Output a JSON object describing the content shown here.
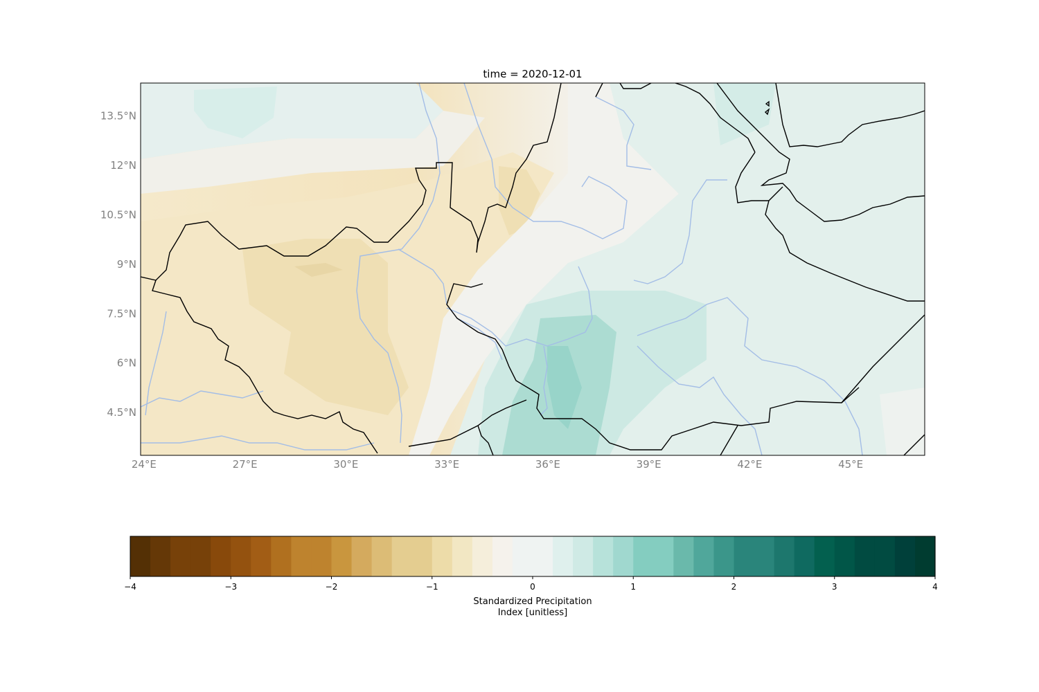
{
  "title": "time = 2020-12-01",
  "map": {
    "lon_range": [
      23.9,
      47.2
    ],
    "lat_range": [
      3.2,
      14.5
    ],
    "lat_ticks": [
      {
        "value": 13.5,
        "label": "13.5°N"
      },
      {
        "value": 12,
        "label": "12°N"
      },
      {
        "value": 10.5,
        "label": "10.5°N"
      },
      {
        "value": 9,
        "label": "9°N"
      },
      {
        "value": 7.5,
        "label": "7.5°N"
      },
      {
        "value": 6,
        "label": "6°N"
      },
      {
        "value": 4.5,
        "label": "4.5°N"
      }
    ],
    "lon_ticks": [
      {
        "value": 24,
        "label": "24°E"
      },
      {
        "value": 27,
        "label": "27°E"
      },
      {
        "value": 30,
        "label": "30°E"
      },
      {
        "value": 33,
        "label": "33°E"
      },
      {
        "value": 36,
        "label": "36°E"
      },
      {
        "value": 39,
        "label": "39°E"
      },
      {
        "value": 42,
        "label": "42°E"
      },
      {
        "value": 45,
        "label": "45°E"
      }
    ],
    "field_description_values": {
      "west_dry_region_min": -0.9,
      "east_wet_region_max": 1.1
    },
    "colors": {
      "border": "#000000",
      "river": "#a3bde6"
    }
  },
  "chart_data": {
    "type": "heatmap",
    "title": "time = 2020-12-01",
    "colormap": "BrBG",
    "vmin": -4,
    "vmax": 4,
    "levels_step": 0.2,
    "colorbar_ticks": [
      -4,
      -3,
      -2,
      -1,
      0,
      1,
      2,
      3,
      4
    ],
    "colorbar_tick_labels": [
      "−4",
      "−3",
      "−2",
      "−1",
      "0",
      "1",
      "2",
      "3",
      "4"
    ],
    "colorbar_label": [
      "Standardized Precipitation",
      "Index [unitless]"
    ]
  },
  "colorbar": {
    "colors": [
      "#543005",
      "#653807",
      "#774109",
      "#88490b",
      "#94520f",
      "#a25d15",
      "#b0701f",
      "#be832e",
      "#c9963e",
      "#d4aa5e",
      "#dcbc76",
      "#e4cd90",
      "#eddca9",
      "#f2e7c3",
      "#f5eedb",
      "#f5f2ec",
      "#eff3f2",
      "#dff0ed",
      "#cfeae5",
      "#b7e2da",
      "#a0d8cf",
      "#84cdc0",
      "#6ab9ab",
      "#50a79b",
      "#3b968a",
      "#2a857b",
      "#1d776d",
      "#0f6a60",
      "#03604f",
      "#015648",
      "#014b41",
      "#00403a",
      "#003c30"
    ]
  }
}
